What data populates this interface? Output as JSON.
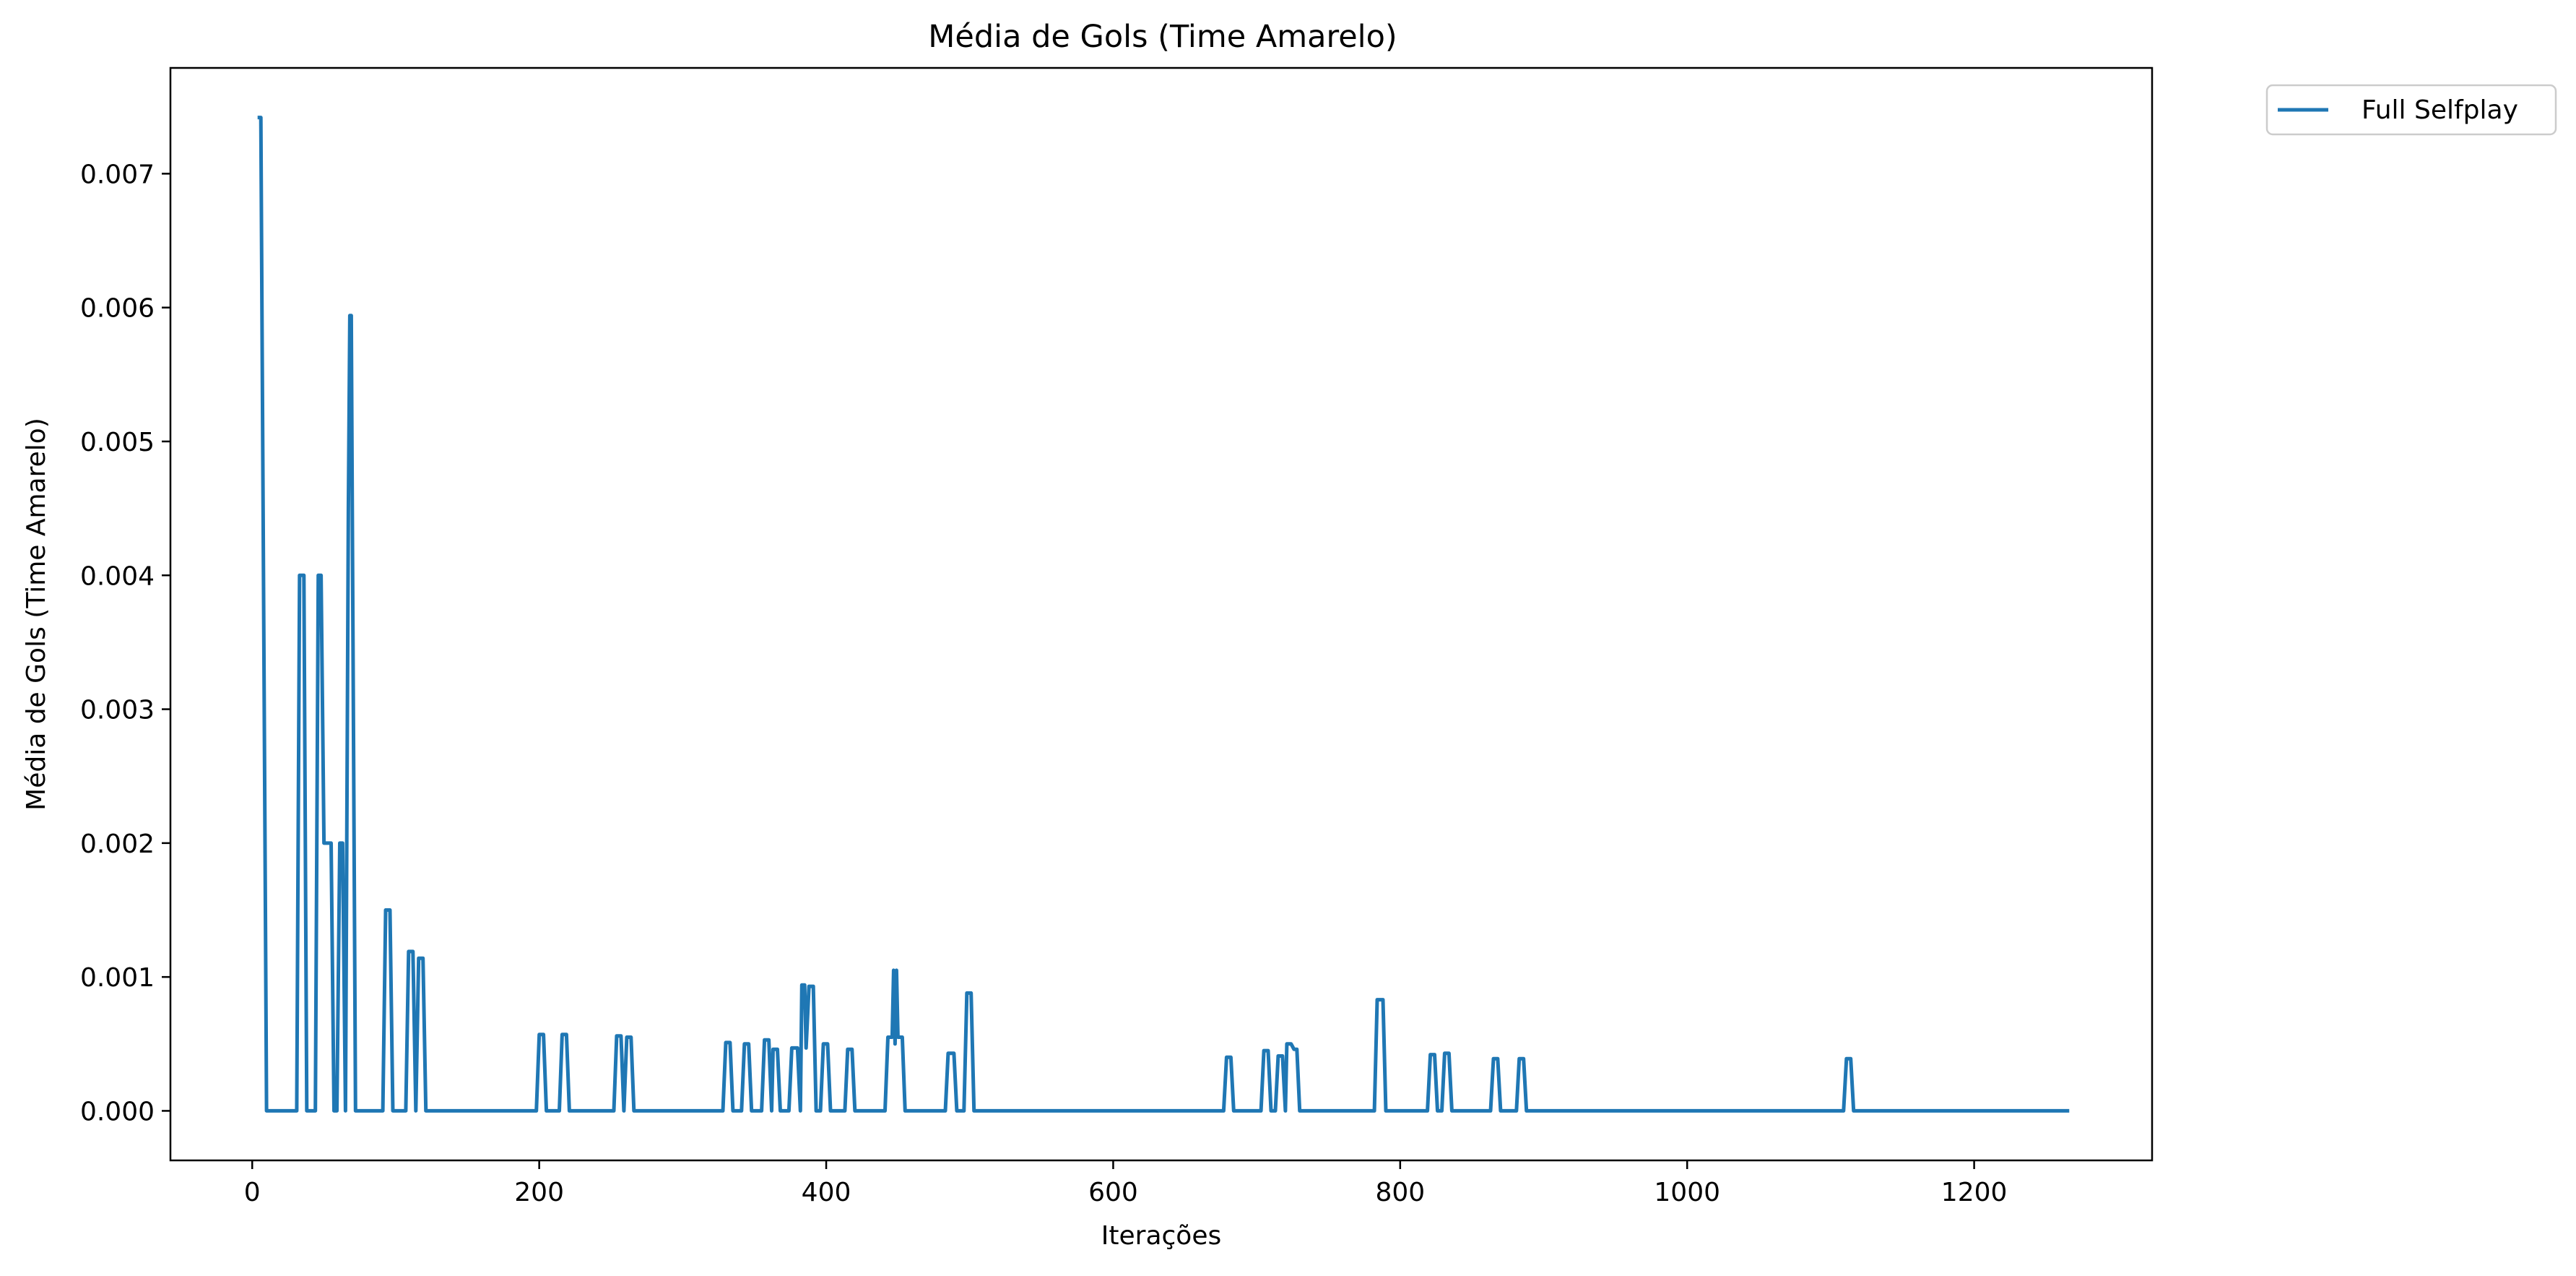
{
  "chart_data": {
    "type": "line",
    "title": "Média de Gols (Time Amarelo)",
    "xlabel": "Iterações",
    "ylabel": "Média de Gols (Time Amarelo)",
    "xlim": [
      -57,
      1324
    ],
    "ylim": [
      -0.00037,
      0.00779
    ],
    "xticks": [
      0,
      200,
      400,
      600,
      800,
      1000,
      1200
    ],
    "xtick_labels": [
      "0",
      "200",
      "400",
      "600",
      "800",
      "1000",
      "1200"
    ],
    "yticks": [
      0.0,
      0.001,
      0.002,
      0.003,
      0.004,
      0.005,
      0.006,
      0.007
    ],
    "ytick_labels": [
      "0.000",
      "0.001",
      "0.002",
      "0.003",
      "0.004",
      "0.005",
      "0.006",
      "0.007"
    ],
    "grid": false,
    "legend_position": "outside-top-right",
    "series": [
      {
        "name": "Full Selfplay",
        "color": "#1f77b4",
        "points": [
          [
            5,
            0.00742
          ],
          [
            6,
            0.00742
          ],
          [
            10,
            0
          ],
          [
            31,
            0
          ],
          [
            33,
            0.004
          ],
          [
            36,
            0.004
          ],
          [
            38,
            0
          ],
          [
            44,
            0
          ],
          [
            46,
            0.004
          ],
          [
            48,
            0.004
          ],
          [
            50,
            0.002
          ],
          [
            55,
            0.002
          ],
          [
            57,
            0
          ],
          [
            59,
            0
          ],
          [
            61,
            0.002
          ],
          [
            63,
            0.002
          ],
          [
            65,
            0
          ],
          [
            67,
            0.0045
          ],
          [
            68,
            0.00594
          ],
          [
            69,
            0.00594
          ],
          [
            70,
            0.004
          ],
          [
            72,
            0
          ],
          [
            91,
            0
          ],
          [
            93,
            0.0015
          ],
          [
            96,
            0.0015
          ],
          [
            98,
            0
          ],
          [
            107,
            0
          ],
          [
            109,
            0.00119
          ],
          [
            112,
            0.00119
          ],
          [
            114,
            0
          ],
          [
            116,
            0.00114
          ],
          [
            119,
            0.00114
          ],
          [
            121,
            0
          ],
          [
            198,
            0
          ],
          [
            200,
            0.00057
          ],
          [
            203,
            0.00057
          ],
          [
            205,
            0
          ],
          [
            214,
            0
          ],
          [
            216,
            0.00057
          ],
          [
            219,
            0.00057
          ],
          [
            221,
            0
          ],
          [
            252,
            0
          ],
          [
            254,
            0.00056
          ],
          [
            257,
            0.00056
          ],
          [
            259,
            0
          ],
          [
            261,
            0.00055
          ],
          [
            264,
            0.00055
          ],
          [
            266,
            0
          ],
          [
            328,
            0
          ],
          [
            330,
            0.00051
          ],
          [
            333,
            0.00051
          ],
          [
            335,
            0
          ],
          [
            341,
            0
          ],
          [
            343,
            0.0005
          ],
          [
            346,
            0.0005
          ],
          [
            348,
            0
          ],
          [
            355,
            0
          ],
          [
            357,
            0.00053
          ],
          [
            360,
            0.00053
          ],
          [
            362,
            0
          ],
          [
            363,
            0.00046
          ],
          [
            366,
            0.00046
          ],
          [
            368,
            0
          ],
          [
            374,
            0
          ],
          [
            376,
            0.00047
          ],
          [
            380,
            0.00047
          ],
          [
            382,
            0
          ],
          [
            383,
            0.00094
          ],
          [
            385,
            0.00094
          ],
          [
            386,
            0.00047
          ],
          [
            388,
            0.00093
          ],
          [
            391,
            0.00093
          ],
          [
            393,
            0
          ],
          [
            396,
            0
          ],
          [
            398,
            0.0005
          ],
          [
            401,
            0.0005
          ],
          [
            403,
            0
          ],
          [
            413,
            0
          ],
          [
            415,
            0.00046
          ],
          [
            418,
            0.00046
          ],
          [
            420,
            0
          ],
          [
            441,
            0
          ],
          [
            443,
            0.00055
          ],
          [
            446,
            0.00055
          ],
          [
            447,
            0.00105
          ],
          [
            448,
            0.0005
          ],
          [
            449,
            0.00105
          ],
          [
            450,
            0.00055
          ],
          [
            453,
            0.00055
          ],
          [
            455,
            0
          ],
          [
            483,
            0
          ],
          [
            485,
            0.00043
          ],
          [
            489,
            0.00043
          ],
          [
            491,
            0
          ],
          [
            496,
            0
          ],
          [
            498,
            0.00088
          ],
          [
            501,
            0.00088
          ],
          [
            503,
            0
          ],
          [
            677,
            0
          ],
          [
            679,
            0.0004
          ],
          [
            682,
            0.0004
          ],
          [
            684,
            0
          ],
          [
            703,
            0
          ],
          [
            705,
            0.00045
          ],
          [
            708,
            0.00045
          ],
          [
            710,
            0
          ],
          [
            713,
            0
          ],
          [
            715,
            0.00041
          ],
          [
            718,
            0.00041
          ],
          [
            720,
            0
          ],
          [
            721,
            0.0005
          ],
          [
            724,
            0.0005
          ],
          [
            726,
            0.00046
          ],
          [
            728,
            0.00046
          ],
          [
            730,
            0
          ],
          [
            782,
            0
          ],
          [
            784,
            0.00083
          ],
          [
            788,
            0.00083
          ],
          [
            790,
            0
          ],
          [
            819,
            0
          ],
          [
            821,
            0.00042
          ],
          [
            824,
            0.00042
          ],
          [
            826,
            0
          ],
          [
            829,
            0
          ],
          [
            831,
            0.00043
          ],
          [
            834,
            0.00043
          ],
          [
            836,
            0
          ],
          [
            863,
            0
          ],
          [
            865,
            0.00039
          ],
          [
            868,
            0.00039
          ],
          [
            870,
            0
          ],
          [
            881,
            0
          ],
          [
            883,
            0.00039
          ],
          [
            886,
            0.00039
          ],
          [
            888,
            0
          ],
          [
            1109,
            0
          ],
          [
            1111,
            0.00039
          ],
          [
            1114,
            0.00039
          ],
          [
            1116,
            0
          ],
          [
            1265,
            0
          ]
        ]
      }
    ]
  }
}
